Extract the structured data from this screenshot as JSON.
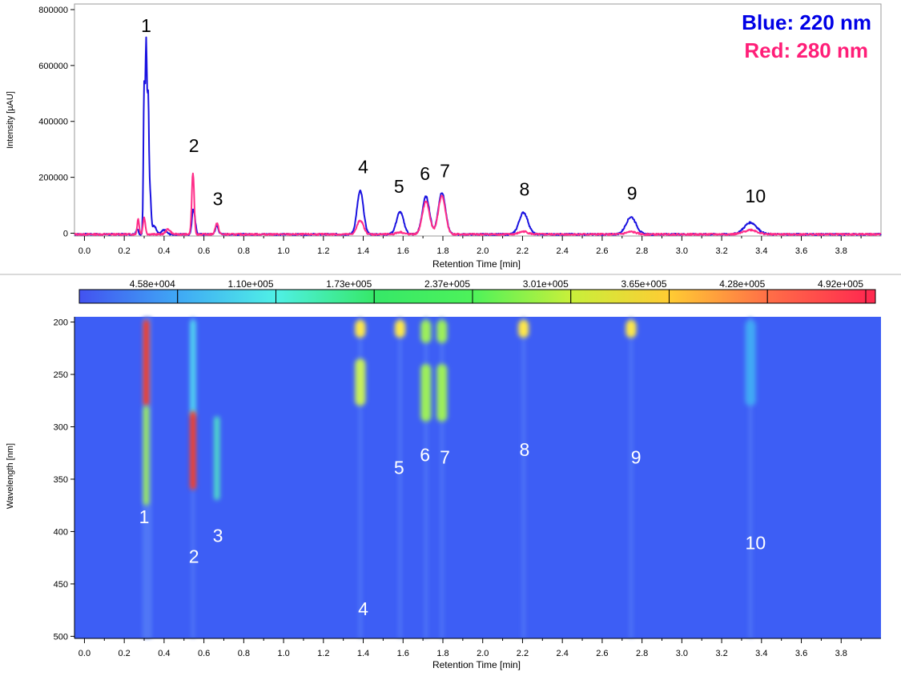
{
  "colors": {
    "blue": "#1a12e0",
    "red": "#ff2d88",
    "legend_blue": "#0000e6",
    "legend_red": "#ff1e78",
    "heatmap_bg": "#3d5ef5"
  },
  "legend": {
    "blue_label": "Blue: 220 nm",
    "red_label": "Red: 280 nm"
  },
  "chart_data": [
    {
      "type": "line",
      "xlabel": "Retention Time [min]",
      "ylabel": "Intensity [µAU]",
      "xlim": [
        -0.05,
        4.0
      ],
      "ylim": [
        -10000,
        820000
      ],
      "x_ticks": [
        "0.0",
        "0.2",
        "0.4",
        "0.6",
        "0.8",
        "1.0",
        "1.2",
        "1.4",
        "1.6",
        "1.8",
        "2.0",
        "2.2",
        "2.4",
        "2.6",
        "2.8",
        "3.0",
        "3.2",
        "3.4",
        "3.6",
        "3.8"
      ],
      "y_ticks": [
        "0",
        "200000",
        "400000",
        "600000",
        "800000"
      ],
      "grid": false,
      "legend_position": "top-right",
      "series": [
        {
          "name": "Blue: 220 nm",
          "color": "#1a12e0",
          "peaks": [
            {
              "x": 0.265,
              "height": 20000,
              "width": 0.006
            },
            {
              "x": 0.3,
              "height": 520000,
              "width": 0.004
            },
            {
              "x": 0.31,
              "height": 660000,
              "width": 0.004
            },
            {
              "x": 0.32,
              "height": 470000,
              "width": 0.004
            },
            {
              "x": 0.33,
              "height": 140000,
              "width": 0.005
            },
            {
              "x": 0.35,
              "height": 30000,
              "width": 0.01
            },
            {
              "x": 0.4,
              "height": 15000,
              "width": 0.012
            },
            {
              "x": 0.545,
              "height": 80000,
              "width": 0.006
            },
            {
              "x": 0.555,
              "height": 40000,
              "width": 0.006
            },
            {
              "x": 0.665,
              "height": 30000,
              "width": 0.008
            },
            {
              "x": 1.385,
              "height": 155000,
              "width": 0.016
            },
            {
              "x": 1.585,
              "height": 80000,
              "width": 0.018
            },
            {
              "x": 1.715,
              "height": 135000,
              "width": 0.018
            },
            {
              "x": 1.795,
              "height": 150000,
              "width": 0.018
            },
            {
              "x": 2.205,
              "height": 78000,
              "width": 0.022
            },
            {
              "x": 2.745,
              "height": 62000,
              "width": 0.025
            },
            {
              "x": 3.345,
              "height": 42000,
              "width": 0.032
            }
          ]
        },
        {
          "name": "Red: 280 nm",
          "color": "#ff2d88",
          "peaks": [
            {
              "x": 0.27,
              "height": 55000,
              "width": 0.005
            },
            {
              "x": 0.3,
              "height": 60000,
              "width": 0.006
            },
            {
              "x": 0.42,
              "height": 18000,
              "width": 0.012
            },
            {
              "x": 0.545,
              "height": 220000,
              "width": 0.006
            },
            {
              "x": 0.665,
              "height": 40000,
              "width": 0.008
            },
            {
              "x": 1.385,
              "height": 50000,
              "width": 0.016
            },
            {
              "x": 1.585,
              "height": 8000,
              "width": 0.018
            },
            {
              "x": 1.715,
              "height": 118000,
              "width": 0.018
            },
            {
              "x": 1.795,
              "height": 138000,
              "width": 0.018
            },
            {
              "x": 2.205,
              "height": 10000,
              "width": 0.022
            },
            {
              "x": 2.745,
              "height": 9000,
              "width": 0.025
            },
            {
              "x": 3.345,
              "height": 16000,
              "width": 0.032
            }
          ]
        }
      ],
      "peak_labels": [
        {
          "text": "1",
          "x": 0.31,
          "y": 720000
        },
        {
          "text": "2",
          "x": 0.55,
          "y": 290000
        },
        {
          "text": "3",
          "x": 0.67,
          "y": 100000
        },
        {
          "text": "4",
          "x": 1.4,
          "y": 215000
        },
        {
          "text": "5",
          "x": 1.58,
          "y": 145000
        },
        {
          "text": "6",
          "x": 1.71,
          "y": 190000
        },
        {
          "text": "7",
          "x": 1.81,
          "y": 200000
        },
        {
          "text": "8",
          "x": 2.21,
          "y": 135000
        },
        {
          "text": "9",
          "x": 2.75,
          "y": 120000
        },
        {
          "text": "10",
          "x": 3.37,
          "y": 110000
        }
      ]
    },
    {
      "type": "heatmap",
      "xlabel": "Retention Time [min]",
      "ylabel": "Wavelength [nm]",
      "xlim": [
        -0.05,
        4.0
      ],
      "ylim": [
        195,
        502
      ],
      "x_ticks": [
        "0.0",
        "0.2",
        "0.4",
        "0.6",
        "0.8",
        "1.0",
        "1.2",
        "1.4",
        "1.6",
        "1.8",
        "2.0",
        "2.2",
        "2.4",
        "2.6",
        "2.8",
        "3.0",
        "3.2",
        "3.4",
        "3.6",
        "3.8"
      ],
      "y_ticks": [
        "200",
        "250",
        "300",
        "350",
        "400",
        "450",
        "500"
      ],
      "colorbar_ticks": [
        "4.58e+004",
        "1.10e+005",
        "1.73e+005",
        "2.37e+005",
        "3.01e+005",
        "3.65e+005",
        "4.28e+005",
        "4.92e+005"
      ],
      "colorbar_colors": [
        "#4252f0",
        "#3fa8f5",
        "#4ff0e6",
        "#36e868",
        "#4df25a",
        "#c8f03a",
        "#ffcc33",
        "#ff6f47",
        "#ff2b4f"
      ],
      "spots": [
        {
          "x": 0.31,
          "y1": 198,
          "y2": 280,
          "color": "#ff3a1e"
        },
        {
          "x": 0.31,
          "y1": 280,
          "y2": 375,
          "color": "#9df05a"
        },
        {
          "x": 0.545,
          "y1": 198,
          "y2": 290,
          "color": "#4fd8f0"
        },
        {
          "x": 0.545,
          "y1": 285,
          "y2": 360,
          "color": "#ff3a1e"
        },
        {
          "x": 0.665,
          "y1": 290,
          "y2": 370,
          "color": "#4fe0c8"
        },
        {
          "x": 1.385,
          "y1": 198,
          "y2": 215,
          "color": "#ffe84a"
        },
        {
          "x": 1.385,
          "y1": 235,
          "y2": 280,
          "color": "#c8f05a"
        },
        {
          "x": 1.585,
          "y1": 198,
          "y2": 215,
          "color": "#ffe84a"
        },
        {
          "x": 1.715,
          "y1": 198,
          "y2": 220,
          "color": "#9df05a"
        },
        {
          "x": 1.715,
          "y1": 240,
          "y2": 295,
          "color": "#9df05a"
        },
        {
          "x": 1.795,
          "y1": 198,
          "y2": 220,
          "color": "#9df05a"
        },
        {
          "x": 1.795,
          "y1": 240,
          "y2": 295,
          "color": "#9df05a"
        },
        {
          "x": 2.205,
          "y1": 198,
          "y2": 215,
          "color": "#ffe84a"
        },
        {
          "x": 2.745,
          "y1": 198,
          "y2": 215,
          "color": "#ffe84a"
        },
        {
          "x": 3.345,
          "y1": 198,
          "y2": 280,
          "color": "#3fa8f5"
        }
      ],
      "peak_labels": [
        {
          "text": "1",
          "x": 0.3,
          "y": 392
        },
        {
          "text": "2",
          "x": 0.55,
          "y": 430
        },
        {
          "text": "3",
          "x": 0.67,
          "y": 410
        },
        {
          "text": "4",
          "x": 1.4,
          "y": 480
        },
        {
          "text": "5",
          "x": 1.58,
          "y": 345
        },
        {
          "text": "6",
          "x": 1.71,
          "y": 333
        },
        {
          "text": "7",
          "x": 1.81,
          "y": 335
        },
        {
          "text": "8",
          "x": 2.21,
          "y": 328
        },
        {
          "text": "9",
          "x": 2.77,
          "y": 335
        },
        {
          "text": "10",
          "x": 3.37,
          "y": 417
        }
      ]
    }
  ]
}
